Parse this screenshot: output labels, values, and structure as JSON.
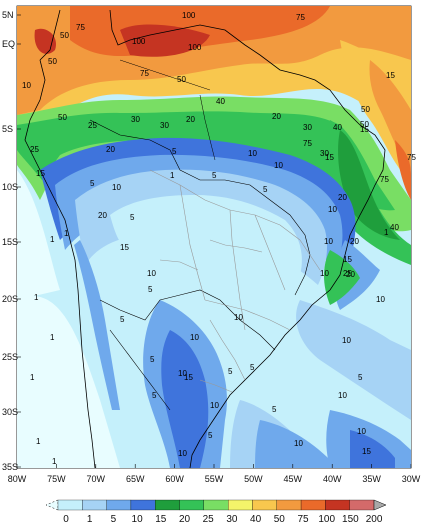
{
  "map": {
    "lat_labels": [
      "5N",
      "EQ",
      "5S",
      "10S",
      "15S",
      "20S",
      "25S",
      "30S",
      "35S"
    ],
    "lon_labels": [
      "80W",
      "75W",
      "70W",
      "65W",
      "60W",
      "55W",
      "50W",
      "45W",
      "40W",
      "35W",
      "30W"
    ],
    "colorbar_labels": [
      "0",
      "1",
      "5",
      "10",
      "15",
      "20",
      "25",
      "30",
      "40",
      "50",
      "75",
      "100",
      "150",
      "200"
    ],
    "colorbar_colors": [
      "#e8fdff",
      "#c5f0fb",
      "#a6d3f5",
      "#6fa9ec",
      "#3f74dc",
      "#1f9e3c",
      "#34c257",
      "#79de64",
      "#f4f46a",
      "#f8c74e",
      "#f29a3f",
      "#ea6a2a",
      "#c53422",
      "#d46a6a",
      "#a8a8a8"
    ],
    "contour_labels": [
      {
        "t": "100"
      },
      {
        "t": "75"
      },
      {
        "t": "50"
      },
      {
        "t": "100"
      },
      {
        "t": "100"
      },
      {
        "t": "75"
      },
      {
        "t": "50"
      },
      {
        "t": "75"
      },
      {
        "t": "50"
      },
      {
        "t": "15"
      },
      {
        "t": "40"
      },
      {
        "t": "30"
      },
      {
        "t": "30"
      },
      {
        "t": "20"
      },
      {
        "t": "50"
      },
      {
        "t": "25"
      },
      {
        "t": "25"
      },
      {
        "t": "20"
      },
      {
        "t": "15"
      },
      {
        "t": "5"
      },
      {
        "t": "10"
      },
      {
        "t": "20"
      },
      {
        "t": "30"
      },
      {
        "t": "40"
      },
      {
        "t": "50"
      },
      {
        "t": "75"
      },
      {
        "t": "30"
      },
      {
        "t": "5"
      },
      {
        "t": "10"
      },
      {
        "t": "15"
      },
      {
        "t": "5"
      },
      {
        "t": "10"
      },
      {
        "t": "5"
      },
      {
        "t": "1"
      },
      {
        "t": "5"
      },
      {
        "t": "10"
      },
      {
        "t": "15"
      },
      {
        "t": "20"
      },
      {
        "t": "1"
      },
      {
        "t": "1"
      },
      {
        "t": "10"
      },
      {
        "t": "5"
      },
      {
        "t": "10"
      },
      {
        "t": "15"
      },
      {
        "t": "20"
      },
      {
        "t": "25"
      },
      {
        "t": "10"
      },
      {
        "t": "1"
      },
      {
        "t": "1"
      },
      {
        "t": "5"
      },
      {
        "t": "10"
      },
      {
        "t": "1"
      },
      {
        "t": "5"
      },
      {
        "t": "10"
      },
      {
        "t": "15"
      },
      {
        "t": "5"
      },
      {
        "t": "10"
      },
      {
        "t": "5"
      },
      {
        "t": "10"
      },
      {
        "t": "1"
      },
      {
        "t": "5"
      },
      {
        "t": "10"
      },
      {
        "t": "15"
      },
      {
        "t": "10"
      },
      {
        "t": "5"
      },
      {
        "t": "10"
      },
      {
        "t": "10"
      },
      {
        "t": "20"
      },
      {
        "t": "50"
      },
      {
        "t": "40"
      },
      {
        "t": "75"
      },
      {
        "t": "75"
      },
      {
        "t": "1"
      },
      {
        "t": "1"
      },
      {
        "t": "20"
      },
      {
        "t": "10"
      },
      {
        "t": "5"
      },
      {
        "t": "5"
      },
      {
        "t": "10"
      },
      {
        "t": "10"
      },
      {
        "t": "15"
      }
    ]
  }
}
